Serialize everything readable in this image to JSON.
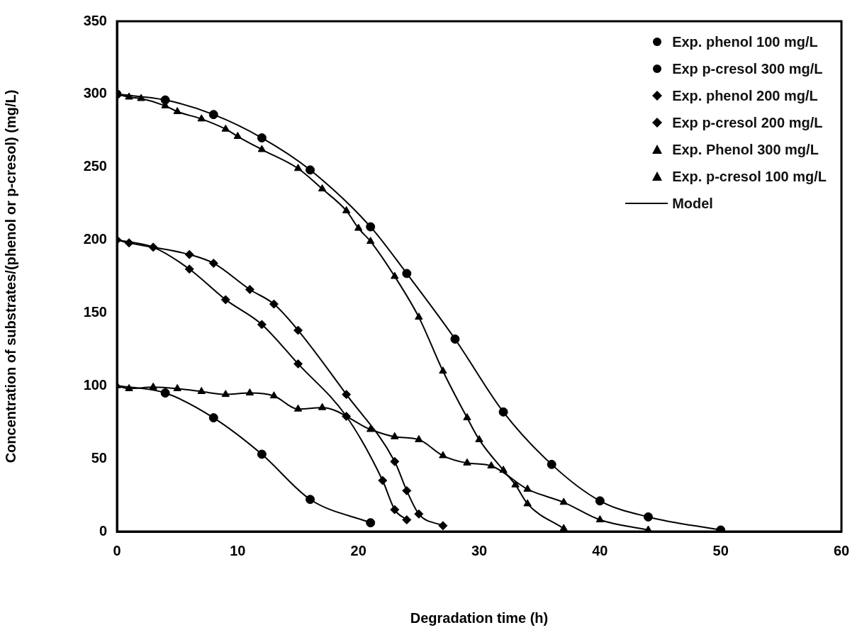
{
  "chart_data": {
    "type": "scatter",
    "xlabel": "Degradation time (h)",
    "ylabel": "Concentration of substrates/(phenol or p-cresol) (mg/L)",
    "xlim": [
      0,
      60
    ],
    "xticks": [
      0,
      10,
      20,
      30,
      40,
      50,
      60
    ],
    "ylim": [
      0,
      350
    ],
    "yticks": [
      0,
      50,
      100,
      150,
      200,
      250,
      300,
      350
    ],
    "grid": false,
    "legend": "top right",
    "series": [
      {
        "name": "Exp. phenol 100 mg/L",
        "marker": "circle",
        "color": "#000000",
        "x": [
          4,
          8,
          12,
          16,
          21
        ],
        "values": [
          95,
          78,
          53,
          22,
          6
        ]
      },
      {
        "name": "Exp p-cresol 300 mg/L",
        "marker": "circle",
        "color": "#000000",
        "x": [
          0,
          4,
          8,
          12,
          16,
          21,
          24,
          28,
          32,
          36,
          40,
          44,
          50
        ],
        "values": [
          300,
          296,
          286,
          270,
          248,
          209,
          177,
          132,
          82,
          46,
          21,
          10,
          1
        ]
      },
      {
        "name": "Exp. phenol 200 mg/L",
        "marker": "diamond",
        "color": "#000000",
        "x": [
          0,
          3,
          6,
          9,
          12,
          15,
          19,
          22,
          23,
          24
        ],
        "values": [
          200,
          195,
          180,
          159,
          142,
          115,
          79,
          35,
          15,
          8
        ]
      },
      {
        "name": "Exp p-cresol 200 mg/L",
        "marker": "diamond",
        "color": "#000000",
        "x": [
          1,
          6,
          8,
          11,
          13,
          15,
          19,
          23,
          24,
          25,
          27
        ],
        "values": [
          198,
          190,
          184,
          166,
          156,
          138,
          94,
          48,
          28,
          12,
          4
        ]
      },
      {
        "name": "Exp. Phenol 300 mg/L",
        "marker": "triangle",
        "color": "#000000",
        "x": [
          1,
          2,
          4,
          5,
          7,
          9,
          10,
          12,
          15,
          17,
          19,
          20,
          21,
          23,
          25,
          27,
          29,
          30,
          32,
          33,
          34,
          37
        ],
        "values": [
          298,
          297,
          292,
          288,
          283,
          276,
          271,
          262,
          249,
          235,
          220,
          208,
          199,
          175,
          147,
          110,
          78,
          63,
          42,
          32,
          19,
          2
        ]
      },
      {
        "name": "Exp. p-cresol 100 mg/L",
        "marker": "triangle",
        "color": "#000000",
        "x": [
          0,
          1,
          3,
          5,
          7,
          9,
          11,
          13,
          15,
          17,
          21,
          23,
          25,
          27,
          29,
          31,
          34,
          37,
          40,
          44
        ],
        "values": [
          100,
          98,
          99,
          98,
          96,
          94,
          95,
          93,
          84,
          85,
          70,
          65,
          63,
          52,
          47,
          45,
          29,
          20,
          8,
          1
        ]
      },
      {
        "name": "Model",
        "type": "line",
        "marker": "none",
        "color": "#000000",
        "x": [
          0,
          4,
          8,
          12,
          16,
          21
        ],
        "values": [
          100,
          95,
          78,
          53,
          22,
          6
        ]
      },
      {
        "type": "line",
        "marker": "none",
        "color": "#000000",
        "x": [
          0,
          4,
          8,
          12,
          16,
          21,
          24,
          28,
          32,
          36,
          40,
          44,
          50
        ],
        "values": [
          300,
          296,
          286,
          270,
          248,
          209,
          177,
          132,
          82,
          46,
          21,
          10,
          1
        ]
      },
      {
        "type": "line",
        "marker": "none",
        "color": "#000000",
        "x": [
          0,
          3,
          6,
          9,
          12,
          15,
          19,
          22,
          23,
          24
        ],
        "values": [
          200,
          195,
          180,
          159,
          142,
          115,
          79,
          35,
          15,
          8
        ]
      },
      {
        "type": "line",
        "marker": "none",
        "color": "#000000",
        "x": [
          0,
          1,
          6,
          8,
          11,
          13,
          15,
          19,
          23,
          24,
          25,
          27
        ],
        "values": [
          200,
          198,
          190,
          184,
          166,
          156,
          138,
          94,
          48,
          28,
          12,
          4
        ]
      },
      {
        "type": "line",
        "marker": "none",
        "color": "#000000",
        "x": [
          0,
          1,
          2,
          4,
          5,
          7,
          9,
          10,
          12,
          15,
          17,
          19,
          20,
          21,
          23,
          25,
          27,
          29,
          30,
          32,
          33,
          34,
          37
        ],
        "values": [
          300,
          298,
          297,
          292,
          288,
          283,
          276,
          271,
          262,
          249,
          235,
          220,
          208,
          199,
          175,
          147,
          110,
          78,
          63,
          42,
          32,
          19,
          2
        ]
      },
      {
        "type": "line",
        "marker": "none",
        "color": "#000000",
        "x": [
          0,
          1,
          3,
          5,
          7,
          9,
          11,
          13,
          15,
          17,
          21,
          23,
          25,
          27,
          29,
          31,
          34,
          37,
          40,
          44
        ],
        "values": [
          100,
          98,
          99,
          98,
          96,
          94,
          95,
          93,
          84,
          85,
          70,
          65,
          63,
          52,
          47,
          45,
          29,
          20,
          8,
          1
        ]
      }
    ]
  }
}
